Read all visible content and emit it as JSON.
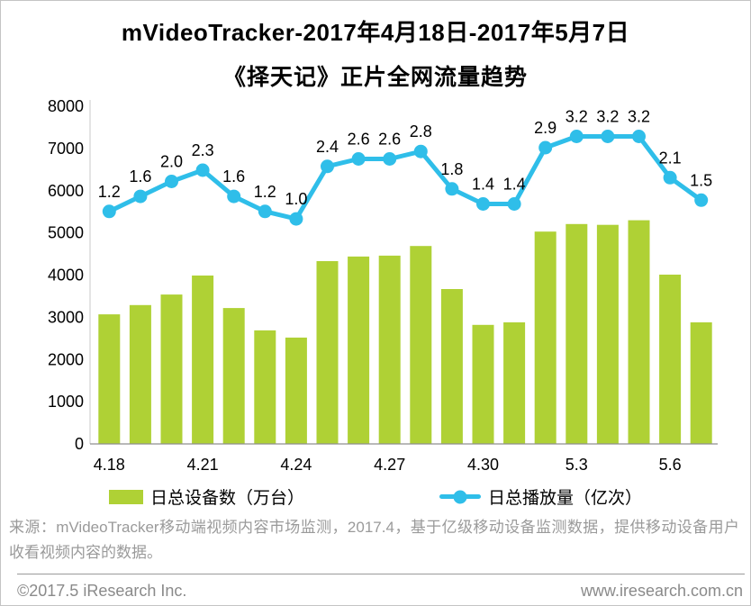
{
  "title": {
    "line1": "mVideoTracker-2017年4月18日-2017年5月7日",
    "line2": "《择天记》正片全网流量趋势"
  },
  "chart_data": {
    "type": "combo",
    "n_points": 20,
    "grid": false,
    "legend_position": "bottom",
    "y_axis": {
      "min": 0,
      "max": 8000,
      "step": 1000
    },
    "x_tick_labels": [
      {
        "index": 0,
        "label": "4.18"
      },
      {
        "index": 3,
        "label": "4.21"
      },
      {
        "index": 6,
        "label": "4.24"
      },
      {
        "index": 9,
        "label": "4.27"
      },
      {
        "index": 12,
        "label": "4.30"
      },
      {
        "index": 15,
        "label": "5.3"
      },
      {
        "index": 18,
        "label": "5.6"
      }
    ],
    "series": [
      {
        "name": "日总设备数（万台）",
        "type": "bar",
        "color": "#AFD135",
        "values": [
          3070,
          3290,
          3540,
          3990,
          3220,
          2690,
          2520,
          4330,
          4440,
          4460,
          4690,
          3670,
          2820,
          2880,
          5030,
          5210,
          5190,
          5300,
          4010,
          2880
        ]
      },
      {
        "name": "日总播放量（亿次）",
        "type": "line",
        "color": "#2FBEE9",
        "values": [
          1.2,
          1.6,
          2.0,
          2.3,
          1.6,
          1.2,
          1.0,
          2.4,
          2.6,
          2.6,
          2.8,
          1.8,
          1.4,
          1.4,
          2.9,
          3.2,
          3.2,
          3.2,
          2.1,
          1.5
        ],
        "labels": [
          "1.2",
          "1.6",
          "2.0",
          "2.3",
          "1.6",
          "1.2",
          "1.0",
          "2.4",
          "2.6",
          "2.6",
          "2.8",
          "1.8",
          "1.4",
          "1.4",
          "2.9",
          "3.2",
          "3.2",
          "3.2",
          "2.1",
          "1.5"
        ]
      }
    ]
  },
  "legend": {
    "bar_label": "日总设备数（万台）",
    "line_label": "日总播放量（亿次）"
  },
  "source_note": "来源：mVideoTracker移动端视频内容市场监测，2017.4，基于亿级移动设备监测数据，提供移动设备用户收看视频内容的数据。",
  "footer": {
    "left": "©2017.5 iResearch Inc.",
    "right": "www.iresearch.com.cn"
  },
  "colors": {
    "bar": "#AFD135",
    "line": "#2FBEE9"
  }
}
